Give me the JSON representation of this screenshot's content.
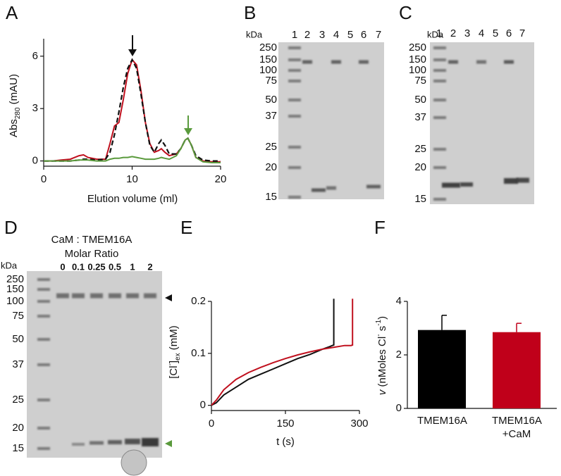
{
  "chart_data": [
    {
      "type": "line",
      "panel": "A",
      "xlabel": "Elution volume (ml)",
      "ylabel": [
        "Abs",
        "280",
        " (mAU)"
      ],
      "x": [
        0,
        1,
        2,
        3,
        4,
        4.5,
        5,
        6,
        7,
        7.5,
        8,
        8.5,
        9,
        9.5,
        10,
        10.5,
        11,
        11.5,
        12,
        12.5,
        13,
        13.3,
        13.7,
        14.2,
        15,
        15.5,
        16,
        16.3,
        16.7,
        17.2,
        18,
        19,
        20
      ],
      "xlim": [
        0,
        20
      ],
      "xticks": [
        0,
        10,
        20
      ],
      "ylim": [
        -0.3,
        7
      ],
      "yticks": [
        0,
        3,
        6
      ],
      "series": [
        {
          "color": "#c0101e",
          "dash": false,
          "values": [
            0,
            0,
            0.05,
            0.1,
            0.3,
            0.35,
            0.2,
            0.1,
            0.1,
            1.0,
            2.0,
            2.2,
            3.5,
            5.0,
            5.8,
            5.5,
            4.0,
            2.2,
            1.0,
            0.5,
            0.6,
            0.7,
            0.5,
            0.3,
            0.4,
            0.7,
            1.2,
            1.3,
            0.9,
            0.2,
            0,
            -0.05,
            -0.05
          ]
        },
        {
          "color": "#111111",
          "dash": true,
          "values": [
            0,
            0,
            0,
            0,
            0.05,
            0.1,
            0.1,
            0.05,
            0.1,
            0.5,
            1.5,
            2.8,
            4.2,
            5.3,
            5.8,
            5.3,
            3.8,
            2.2,
            0.9,
            0.5,
            1.0,
            1.2,
            0.9,
            0.4,
            0.4,
            0.7,
            1.2,
            1.3,
            0.9,
            0.3,
            0.05,
            0,
            0
          ]
        },
        {
          "color": "#5a9a3c",
          "dash": false,
          "values": [
            0,
            0,
            0,
            0,
            0.05,
            0.05,
            0.05,
            0,
            0,
            0.1,
            0.15,
            0.15,
            0.2,
            0.2,
            0.25,
            0.2,
            0.15,
            0.1,
            0.1,
            0.1,
            0.15,
            0.2,
            0.15,
            0.1,
            0.3,
            0.7,
            1.2,
            1.3,
            0.9,
            0.2,
            -0.05,
            -0.1,
            -0.1
          ]
        }
      ]
    },
    {
      "type": "line",
      "panel": "E",
      "xlabel": "t (s)",
      "ylabel": [
        "[Cl",
        "-",
        "]",
        "ex",
        " (mM)"
      ],
      "xlim": [
        0,
        300
      ],
      "xticks": [
        0,
        150,
        300
      ],
      "ylim": [
        -0.01,
        0.2
      ],
      "yticks": [
        0,
        0.1,
        0.2
      ],
      "series": [
        {
          "color": "#111111",
          "x": [
            0,
            10,
            25,
            50,
            75,
            100,
            125,
            150,
            175,
            200,
            225,
            240,
            245,
            248,
            248
          ],
          "values": [
            0,
            0.005,
            0.02,
            0.035,
            0.05,
            0.06,
            0.07,
            0.08,
            0.09,
            0.098,
            0.108,
            0.113,
            0.115,
            0.116,
            0.205
          ]
        },
        {
          "color": "#c0101e",
          "x": [
            0,
            10,
            25,
            50,
            75,
            100,
            125,
            150,
            175,
            200,
            225,
            250,
            270,
            283,
            286,
            286
          ],
          "values": [
            0,
            0.01,
            0.03,
            0.05,
            0.063,
            0.073,
            0.082,
            0.09,
            0.097,
            0.103,
            0.108,
            0.112,
            0.115,
            0.115,
            0.116,
            0.205
          ]
        }
      ]
    },
    {
      "type": "bar",
      "panel": "F",
      "ylabel": [
        "v",
        " (nMoles Cl",
        "-",
        " s",
        "-1",
        ")"
      ],
      "categories": [
        "TMEM16A",
        "TMEM16A +CaM"
      ],
      "values": [
        2.93,
        2.85
      ],
      "errors": [
        0.55,
        0.33
      ],
      "colors": [
        "#000000",
        "#c0001a"
      ],
      "ylim": [
        0,
        4
      ],
      "yticks": [
        0,
        2,
        4
      ]
    }
  ],
  "gels": [
    {
      "panel": "B",
      "unit": "kDa",
      "lanes": [
        "1",
        "2",
        "3",
        "4",
        "5",
        "6",
        "7"
      ],
      "markers": [
        "250",
        "150",
        "100",
        "75",
        "50",
        "37",
        "25",
        "20",
        "15"
      ]
    },
    {
      "panel": "C",
      "unit": "kDa",
      "lanes": [
        "1",
        "2",
        "3",
        "4",
        "5",
        "6",
        "7"
      ],
      "markers": [
        "250",
        "150",
        "100",
        "75",
        "50",
        "37",
        "25",
        "20",
        "15"
      ]
    },
    {
      "panel": "D",
      "unit": "kDa",
      "title": "CaM : TMEM16A",
      "subtitle": "Molar Ratio",
      "lanes": [
        "0",
        "0.1",
        "0.25",
        "0.5",
        "1",
        "2"
      ],
      "markers": [
        "250",
        "150",
        "100",
        "75",
        "50",
        "37",
        "25",
        "20",
        "15"
      ]
    }
  ]
}
